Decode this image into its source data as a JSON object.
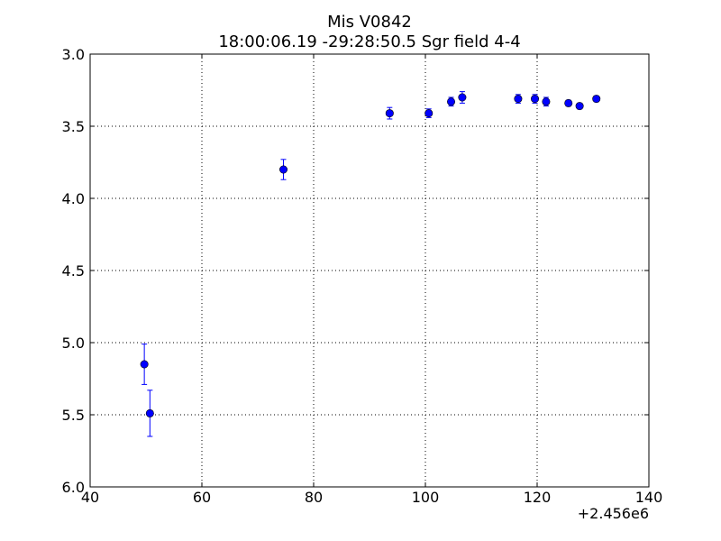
{
  "chart_data": {
    "type": "scatter",
    "title": "Mis V0842",
    "subtitle": "18:00:06.19 -29:28:50.5 Sgr field 4-4",
    "xlabel": "",
    "ylabel": "",
    "x_offset_label": "+2.456e6",
    "xlim": [
      40,
      140
    ],
    "ylim": [
      3.0,
      6.0
    ],
    "y_inverted": true,
    "grid": true,
    "grid_style": "dotted",
    "x_ticks": [
      40,
      60,
      80,
      100,
      120,
      140
    ],
    "x_tick_labels": [
      "40",
      "60",
      "80",
      "100",
      "120",
      "140"
    ],
    "y_ticks": [
      3.0,
      3.5,
      4.0,
      4.5,
      5.0,
      5.5,
      6.0
    ],
    "y_tick_labels": [
      "3.0",
      "3.5",
      "4.0",
      "4.5",
      "5.0",
      "5.5",
      "6.0"
    ],
    "marker_color": "#0000ff",
    "series": [
      {
        "x": [
          49.7,
          50.7,
          74.6,
          93.6,
          100.6,
          104.6,
          106.6,
          116.6,
          119.6,
          121.6,
          125.6,
          127.6,
          130.6
        ],
        "y": [
          5.15,
          5.49,
          3.8,
          3.41,
          3.41,
          3.33,
          3.3,
          3.31,
          3.31,
          3.33,
          3.34,
          3.36,
          3.31
        ],
        "yerr": [
          0.14,
          0.16,
          0.07,
          0.04,
          0.03,
          0.03,
          0.04,
          0.03,
          0.03,
          0.03,
          0.02,
          0.02,
          0.02
        ]
      }
    ]
  }
}
